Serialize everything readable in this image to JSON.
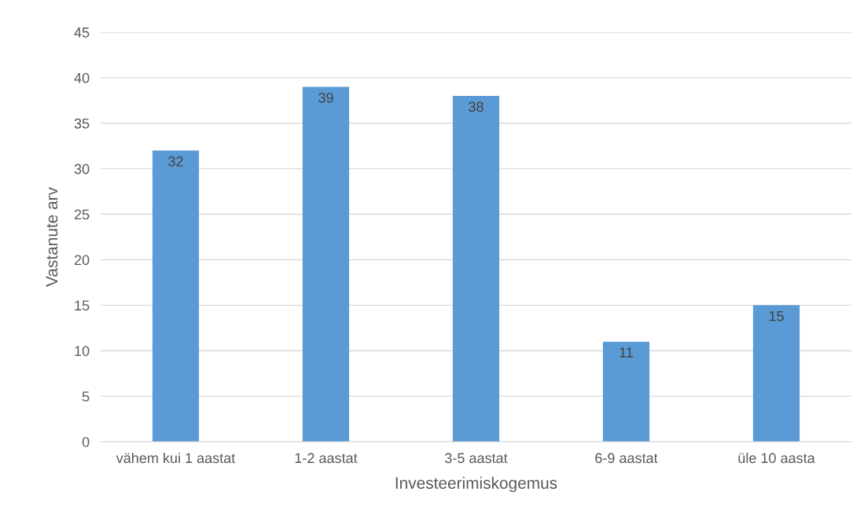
{
  "chart_data": {
    "type": "bar",
    "xlabel": "Investeerimiskogemus",
    "ylabel": "Vastanute arv",
    "categories": [
      "vähem kui 1 aastat",
      "1-2 aastat",
      "3-5 aastat",
      "6-9 aastat",
      "üle 10 aasta"
    ],
    "values": [
      32,
      39,
      38,
      11,
      15
    ],
    "color": "#5b9bd5",
    "ylim": [
      0,
      45
    ],
    "yticks": [
      0,
      5,
      10,
      15,
      20,
      25,
      30,
      35,
      40,
      45
    ],
    "grid": "y",
    "data_labels": true
  }
}
